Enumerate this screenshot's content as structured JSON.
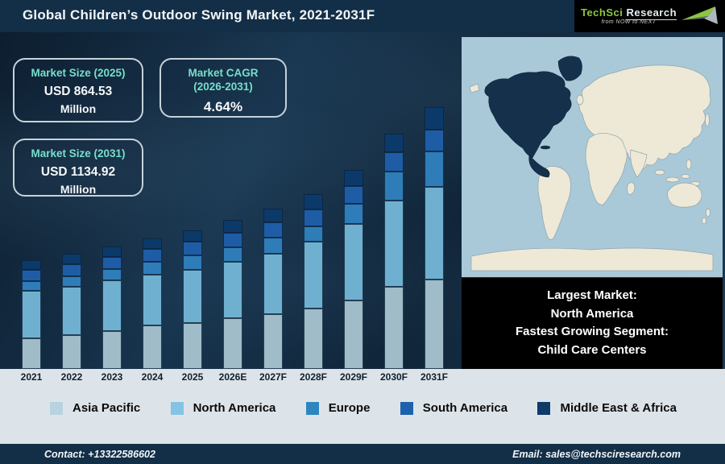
{
  "header": {
    "title": "Global Children’s Outdoor Swing Market, 2021-2031F",
    "logo": {
      "brand_primary": "TechSci",
      "brand_secondary": "Research",
      "tagline": "from NOW to NEXT"
    }
  },
  "info_boxes": [
    {
      "title": "Market Size (2025)",
      "value": "USD 864.53",
      "unit": "Million"
    },
    {
      "title": "Market CAGR",
      "subtitle": "(2026-2031)",
      "value": "4.64%"
    },
    {
      "title": "Market Size (2031)",
      "value": "USD 1134.92",
      "unit": "Million"
    }
  ],
  "chart_data": {
    "type": "bar",
    "stacked": true,
    "title": "Global Children’s Outdoor Swing Market, 2021-2031F",
    "categories": [
      "2021",
      "2022",
      "2023",
      "2024",
      "2025",
      "2026E",
      "2027F",
      "2028F",
      "2029F",
      "2030F",
      "2031F"
    ],
    "value_axis": "none shown (pictorial stacked bars, heights in relative display px)",
    "anchors": {
      "total_2025_usd_million": 864.53,
      "total_2031_usd_million": 1134.92,
      "cagr_2026_2031_percent": 4.64
    },
    "series": [
      {
        "name": "Asia Pacific",
        "color": "#9fbcc8",
        "values": [
          38,
          42,
          47,
          54,
          57,
          63,
          68,
          75,
          85,
          102,
          111
        ]
      },
      {
        "name": "North America",
        "color": "#6fb0d0",
        "values": [
          59,
          60,
          63,
          63,
          66,
          70,
          75,
          83,
          95,
          107,
          115
        ]
      },
      {
        "name": "Europe",
        "color": "#2e7db8",
        "values": [
          12,
          13,
          14,
          16,
          18,
          18,
          20,
          19,
          25,
          36,
          44
        ]
      },
      {
        "name": "South America",
        "color": "#1e5ca6",
        "values": [
          14,
          15,
          15,
          16,
          17,
          18,
          19,
          21,
          22,
          24,
          27
        ]
      },
      {
        "name": "Middle East & Africa",
        "color": "#0b3a6a",
        "values": [
          12,
          13,
          13,
          13,
          14,
          16,
          17,
          19,
          20,
          23,
          28
        ]
      }
    ],
    "legend_position": "bottom"
  },
  "legend": [
    {
      "label": "Asia Pacific",
      "color": "#b7d3e0"
    },
    {
      "label": "North America",
      "color": "#83c4e4"
    },
    {
      "label": "Europe",
      "color": "#2e86c0"
    },
    {
      "label": "South America",
      "color": "#1e61ac"
    },
    {
      "label": "Middle East & Africa",
      "color": "#0d3a68"
    }
  ],
  "map": {
    "highlighted_region": "North America",
    "ocean_color": "#a9c9d9",
    "land_color": "#ede9d6",
    "highlight_color": "#15304a"
  },
  "highlight_box": {
    "lines": [
      "Largest Market:",
      "North America",
      "Fastest Growing Segment:",
      "Child Care Centers"
    ]
  },
  "footer": {
    "contact": "Contact: +13322586602",
    "email": "Email: sales@techsciresearch.com"
  }
}
